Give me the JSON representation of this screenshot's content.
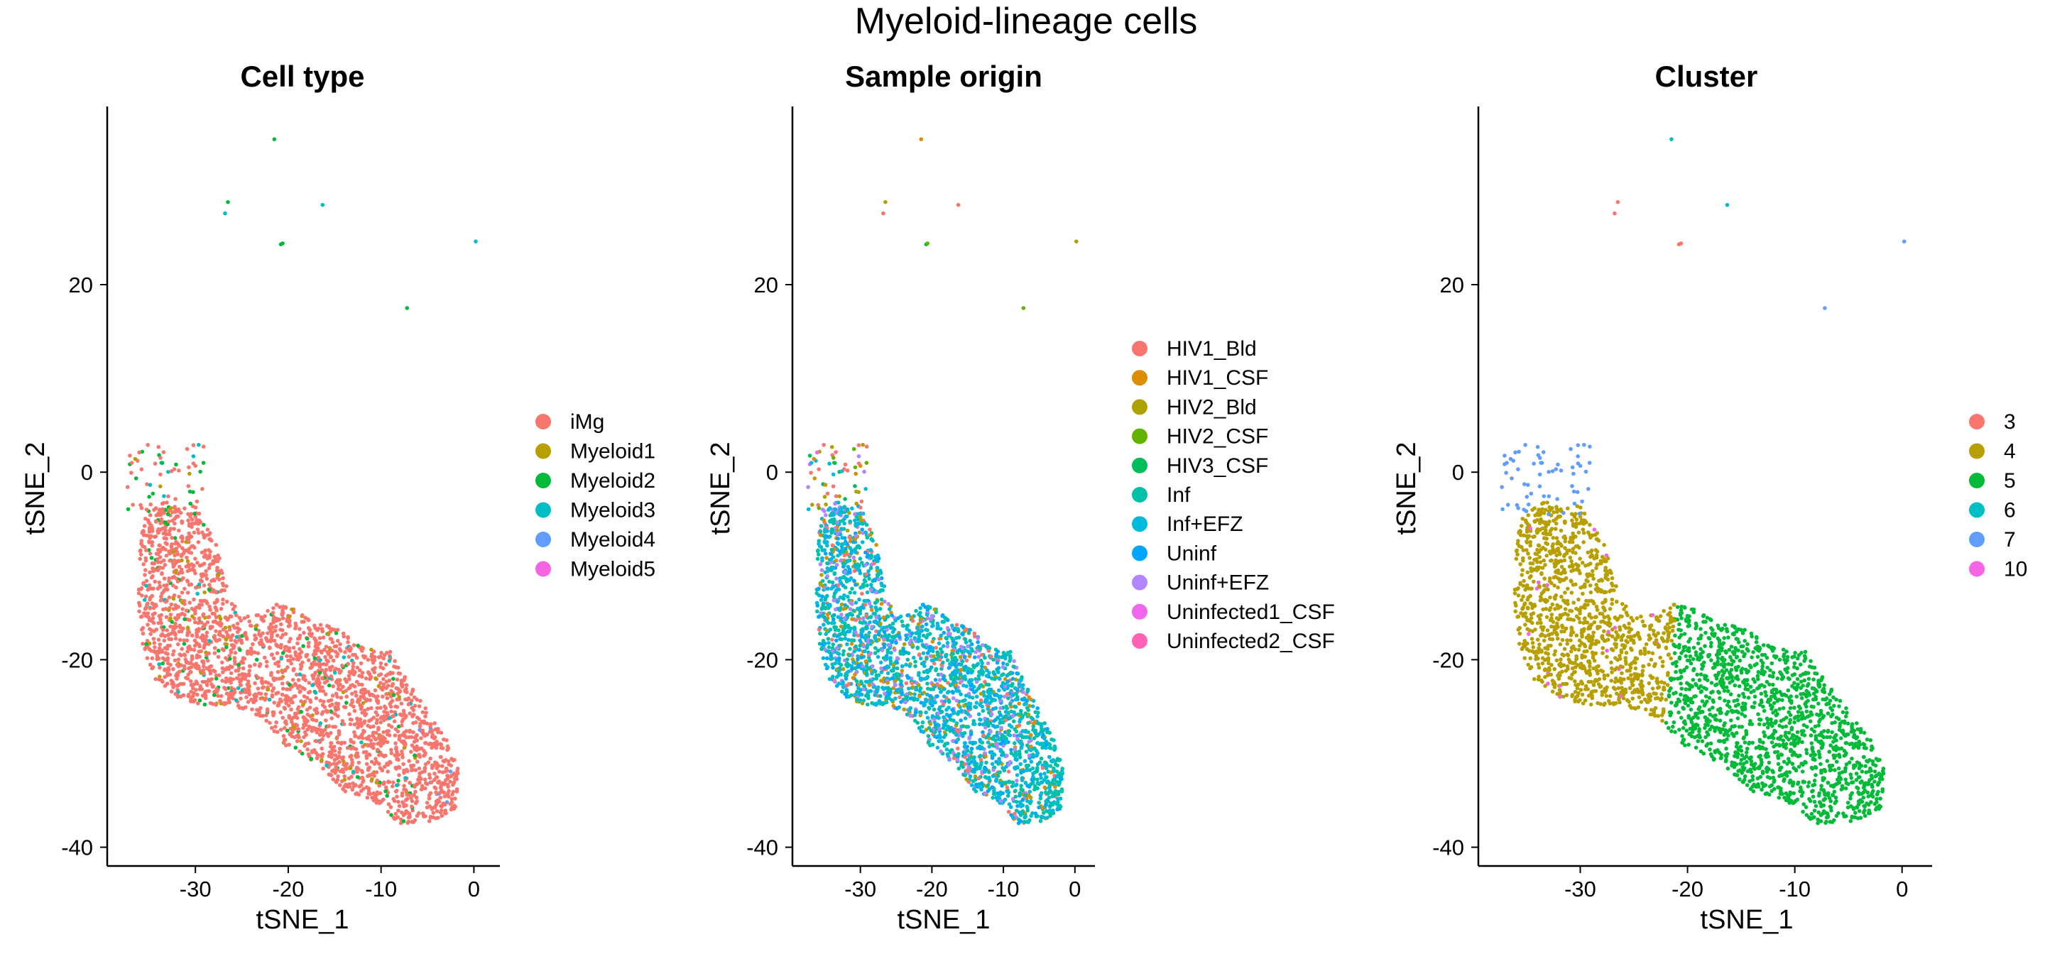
{
  "figure_title": "Myeloid-lineage cells",
  "chart_data": [
    {
      "type": "scatter",
      "title": "Cell type",
      "xlabel": "tSNE_1",
      "ylabel": "tSNE_2",
      "xlim": [
        -39.5,
        2.8
      ],
      "ylim": [
        -42,
        39
      ],
      "xticks": [
        -30,
        -20,
        -10,
        0
      ],
      "yticks": [
        -40,
        -20,
        0,
        20
      ],
      "grid": false,
      "legend": {
        "title": "",
        "position": "right",
        "entries": [
          {
            "label": "iMg",
            "color": "#F8766D"
          },
          {
            "label": "Myeloid1",
            "color": "#B79F00"
          },
          {
            "label": "Myeloid2",
            "color": "#00BA38"
          },
          {
            "label": "Myeloid3",
            "color": "#00BFC4"
          },
          {
            "label": "Myeloid4",
            "color": "#619CFF"
          },
          {
            "label": "Myeloid5",
            "color": "#F564E3"
          }
        ]
      },
      "outlier_points": [
        {
          "x": -21.5,
          "y": 35.5,
          "group": "Myeloid2"
        },
        {
          "x": -26.5,
          "y": 28.8,
          "group": "Myeloid2"
        },
        {
          "x": -26.8,
          "y": 27.6,
          "group": "Myeloid3"
        },
        {
          "x": -16.3,
          "y": 28.5,
          "group": "Myeloid3"
        },
        {
          "x": -20.8,
          "y": 24.3,
          "group": "Myeloid2"
        },
        {
          "x": -20.6,
          "y": 24.4,
          "group": "Myeloid2"
        },
        {
          "x": 0.2,
          "y": 24.6,
          "group": "Myeloid3"
        },
        {
          "x": -7.2,
          "y": 17.5,
          "group": "Myeloid2"
        }
      ],
      "cluster_mix": [
        {
          "region": "upper-left tip",
          "groups": {
            "iMg": 0.6,
            "Myeloid2": 0.25,
            "Myeloid3": 0.1,
            "Myeloid1": 0.05
          }
        },
        {
          "region": "main body",
          "groups": {
            "iMg": 0.9,
            "Myeloid1": 0.04,
            "Myeloid2": 0.04,
            "Myeloid3": 0.02
          }
        },
        {
          "region": "lower-right tail",
          "groups": {
            "iMg": 0.97,
            "Myeloid4": 0.03
          }
        }
      ]
    },
    {
      "type": "scatter",
      "title": "Sample origin",
      "xlabel": "tSNE_1",
      "ylabel": "tSNE_2",
      "xlim": [
        -39.5,
        2.8
      ],
      "ylim": [
        -42,
        39
      ],
      "xticks": [
        -30,
        -20,
        -10,
        0
      ],
      "yticks": [
        -40,
        -20,
        0,
        20
      ],
      "grid": false,
      "legend": {
        "title": "",
        "position": "right",
        "entries": [
          {
            "label": "HIV1_Bld",
            "color": "#F8766D"
          },
          {
            "label": "HIV1_CSF",
            "color": "#DB8E00"
          },
          {
            "label": "HIV2_Bld",
            "color": "#AEA200"
          },
          {
            "label": "HIV2_CSF",
            "color": "#64B200"
          },
          {
            "label": "HIV3_CSF",
            "color": "#00BD5C"
          },
          {
            "label": "Inf",
            "color": "#00C1A7"
          },
          {
            "label": "Inf+EFZ",
            "color": "#00BADE"
          },
          {
            "label": "Uninf",
            "color": "#00A6FF"
          },
          {
            "label": "Uninf+EFZ",
            "color": "#B385FF"
          },
          {
            "label": "Uninfected1_CSF",
            "color": "#EF67EB"
          },
          {
            "label": "Uninfected2_CSF",
            "color": "#FF63B6"
          }
        ]
      },
      "outlier_points": [
        {
          "x": -21.5,
          "y": 35.5,
          "group": "HIV1_CSF"
        },
        {
          "x": -26.5,
          "y": 28.8,
          "group": "HIV2_Bld"
        },
        {
          "x": -26.8,
          "y": 27.6,
          "group": "HIV1_Bld"
        },
        {
          "x": -16.3,
          "y": 28.5,
          "group": "HIV1_Bld"
        },
        {
          "x": -20.8,
          "y": 24.3,
          "group": "HIV3_CSF"
        },
        {
          "x": -20.6,
          "y": 24.4,
          "group": "HIV2_CSF"
        },
        {
          "x": 0.2,
          "y": 24.6,
          "group": "HIV2_Bld"
        },
        {
          "x": -7.2,
          "y": 17.5,
          "group": "HIV2_CSF"
        }
      ],
      "cluster_mix": [
        {
          "region": "upper-left tip",
          "groups": {
            "HIV1_Bld": 0.25,
            "HIV1_CSF": 0.1,
            "HIV2_Bld": 0.1,
            "HIV2_CSF": 0.1,
            "HIV3_CSF": 0.15,
            "Inf+EFZ": 0.2,
            "Uninfected1_CSF": 0.05,
            "Uninf+EFZ": 0.05
          }
        },
        {
          "region": "main body",
          "groups": {
            "Inf": 0.3,
            "Inf+EFZ": 0.3,
            "Uninf": 0.15,
            "Uninf+EFZ": 0.12,
            "HIV1_Bld": 0.05,
            "HIV1_CSF": 0.04,
            "HIV2_Bld": 0.04
          }
        },
        {
          "region": "lower-right tail",
          "groups": {
            "Inf": 0.5,
            "Inf+EFZ": 0.3,
            "Uninf": 0.12,
            "HIV1_Bld": 0.04,
            "HIV1_CSF": 0.04
          }
        }
      ]
    },
    {
      "type": "scatter",
      "title": "Cluster",
      "xlabel": "tSNE_1",
      "ylabel": "tSNE_2",
      "xlim": [
        -39.5,
        2.8
      ],
      "ylim": [
        -42,
        39
      ],
      "xticks": [
        -30,
        -20,
        -10,
        0
      ],
      "yticks": [
        -40,
        -20,
        0,
        20
      ],
      "grid": false,
      "legend": {
        "title": "",
        "position": "right",
        "entries": [
          {
            "label": "3",
            "color": "#F8766D"
          },
          {
            "label": "4",
            "color": "#B79F00"
          },
          {
            "label": "5",
            "color": "#00BA38"
          },
          {
            "label": "6",
            "color": "#00BFC4"
          },
          {
            "label": "7",
            "color": "#619CFF"
          },
          {
            "label": "10",
            "color": "#F564E3"
          }
        ]
      },
      "outlier_points": [
        {
          "x": -21.5,
          "y": 35.5,
          "group": "6"
        },
        {
          "x": -26.5,
          "y": 28.8,
          "group": "3"
        },
        {
          "x": -26.8,
          "y": 27.6,
          "group": "3"
        },
        {
          "x": -16.3,
          "y": 28.5,
          "group": "6"
        },
        {
          "x": -20.8,
          "y": 24.3,
          "group": "3"
        },
        {
          "x": -20.6,
          "y": 24.4,
          "group": "3"
        },
        {
          "x": 0.2,
          "y": 24.6,
          "group": "7"
        },
        {
          "x": -7.2,
          "y": 17.5,
          "group": "7"
        }
      ],
      "cluster_mix": [
        {
          "region": "upper-left tip",
          "groups": {
            "7": 1.0
          }
        },
        {
          "region": "main body left",
          "groups": {
            "4": 0.99,
            "10": 0.01
          }
        },
        {
          "region": "main body right",
          "groups": {
            "5": 1.0
          }
        }
      ]
    }
  ]
}
